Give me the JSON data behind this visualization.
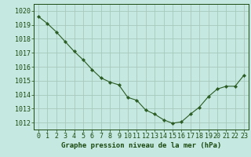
{
  "x": [
    0,
    1,
    2,
    3,
    4,
    5,
    6,
    7,
    8,
    9,
    10,
    11,
    12,
    13,
    14,
    15,
    16,
    17,
    18,
    19,
    20,
    21,
    22,
    23
  ],
  "y": [
    1019.6,
    1019.1,
    1018.5,
    1017.8,
    1017.1,
    1016.5,
    1015.8,
    1015.2,
    1014.9,
    1014.7,
    1013.8,
    1013.6,
    1012.9,
    1012.6,
    1012.2,
    1011.95,
    1012.05,
    1012.6,
    1013.1,
    1013.85,
    1014.4,
    1014.6,
    1014.6,
    1015.4
  ],
  "xlabel": "Graphe pression niveau de la mer (hPa)",
  "xlim": [
    -0.5,
    23.5
  ],
  "ylim": [
    1011.5,
    1020.5
  ],
  "yticks": [
    1012,
    1013,
    1014,
    1015,
    1016,
    1017,
    1018,
    1019,
    1020
  ],
  "xticks": [
    0,
    1,
    2,
    3,
    4,
    5,
    6,
    7,
    8,
    9,
    10,
    11,
    12,
    13,
    14,
    15,
    16,
    17,
    18,
    19,
    20,
    21,
    22,
    23
  ],
  "line_color": "#2a5c24",
  "marker_color": "#2a5c24",
  "bg_color": "#c5e8e0",
  "grid_color": "#a8c8bc",
  "label_color": "#1a4a10",
  "xlabel_fontsize": 6.5,
  "tick_fontsize": 6.0
}
